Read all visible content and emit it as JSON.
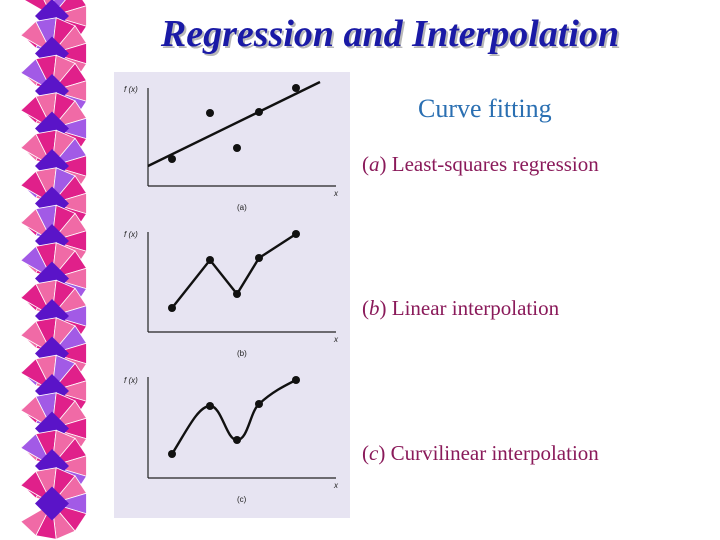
{
  "slide": {
    "title": "Regression and Interpolation",
    "heading": "Curve fitting",
    "items": [
      {
        "open": "(",
        "letter": "a",
        "close": ")",
        "text": " Least-squares regression"
      },
      {
        "open": "(",
        "letter": "b",
        "close": ")",
        "text": " Linear interpolation"
      },
      {
        "open": "(",
        "letter": "c",
        "close": ")",
        "text": " Curvilinear interpolation"
      }
    ]
  },
  "figure": {
    "y_axis_label": "f (x)",
    "x_axis_label": "x",
    "captions": [
      "(a)",
      "(b)",
      "(c)"
    ]
  },
  "colors": {
    "title": "#1a1aa6",
    "heading": "#2a6fb2",
    "text": "#8a1a5a",
    "panel": "#e7e4f2",
    "border_purple": "#5a14c8",
    "border_magenta": "#e0208a",
    "border_pink": "#f06aa6",
    "border_violet": "#a25ae6"
  }
}
